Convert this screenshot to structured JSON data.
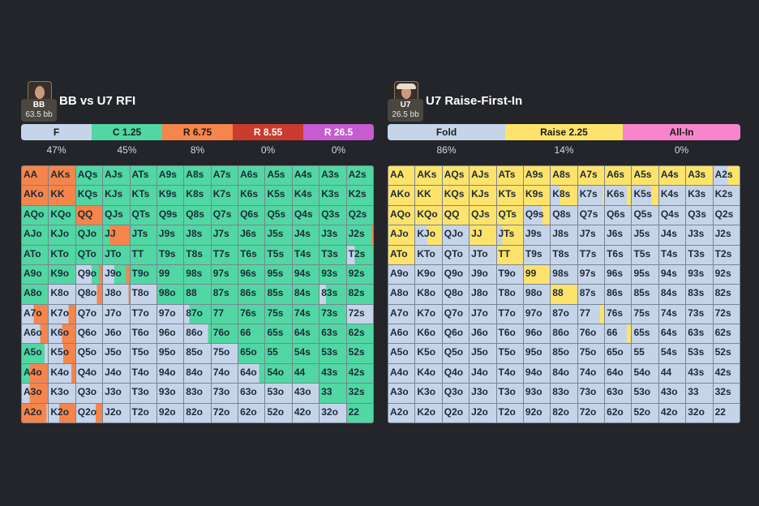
{
  "colors": {
    "f": "#c6d4e9",
    "c": "#50d7a3",
    "r": "#f5854a",
    "y": "#fde36b"
  },
  "hands": [
    [
      "AA",
      "AKs",
      "AQs",
      "AJs",
      "ATs",
      "A9s",
      "A8s",
      "A7s",
      "A6s",
      "A5s",
      "A4s",
      "A3s",
      "A2s"
    ],
    [
      "AKo",
      "KK",
      "KQs",
      "KJs",
      "KTs",
      "K9s",
      "K8s",
      "K7s",
      "K6s",
      "K5s",
      "K4s",
      "K3s",
      "K2s"
    ],
    [
      "AQo",
      "KQo",
      "QQ",
      "QJs",
      "QTs",
      "Q9s",
      "Q8s",
      "Q7s",
      "Q6s",
      "Q5s",
      "Q4s",
      "Q3s",
      "Q2s"
    ],
    [
      "AJo",
      "KJo",
      "QJo",
      "JJ",
      "JTs",
      "J9s",
      "J8s",
      "J7s",
      "J6s",
      "J5s",
      "J4s",
      "J3s",
      "J2s"
    ],
    [
      "ATo",
      "KTo",
      "QTo",
      "JTo",
      "TT",
      "T9s",
      "T8s",
      "T7s",
      "T6s",
      "T5s",
      "T4s",
      "T3s",
      "T2s"
    ],
    [
      "A9o",
      "K9o",
      "Q9o",
      "J9o",
      "T9o",
      "99",
      "98s",
      "97s",
      "96s",
      "95s",
      "94s",
      "93s",
      "92s"
    ],
    [
      "A8o",
      "K8o",
      "Q8o",
      "J8o",
      "T8o",
      "98o",
      "88",
      "87s",
      "86s",
      "85s",
      "84s",
      "83s",
      "82s"
    ],
    [
      "A7o",
      "K7o",
      "Q7o",
      "J7o",
      "T7o",
      "97o",
      "87o",
      "77",
      "76s",
      "75s",
      "74s",
      "73s",
      "72s"
    ],
    [
      "A6o",
      "K6o",
      "Q6o",
      "J6o",
      "T6o",
      "96o",
      "86o",
      "76o",
      "66",
      "65s",
      "64s",
      "63s",
      "62s"
    ],
    [
      "A5o",
      "K5o",
      "Q5o",
      "J5o",
      "T5o",
      "95o",
      "85o",
      "75o",
      "65o",
      "55",
      "54s",
      "53s",
      "52s"
    ],
    [
      "A4o",
      "K4o",
      "Q4o",
      "J4o",
      "T4o",
      "94o",
      "84o",
      "74o",
      "64o",
      "54o",
      "44",
      "43s",
      "42s"
    ],
    [
      "A3o",
      "K3o",
      "Q3o",
      "J3o",
      "T3o",
      "93o",
      "83o",
      "73o",
      "63o",
      "53o",
      "43o",
      "33",
      "32s"
    ],
    [
      "A2o",
      "K2o",
      "Q2o",
      "J2o",
      "T2o",
      "92o",
      "82o",
      "72o",
      "62o",
      "52o",
      "42o",
      "32o",
      "22"
    ]
  ],
  "left": {
    "player": {
      "position": "BB",
      "stack": "63.5 bb",
      "avatar": "bald-man-photo"
    },
    "title": "BB vs U7 RFI",
    "actions": [
      {
        "label": "F",
        "pct": "47%",
        "color": "#c6d4e9",
        "text": "#1b1b1b"
      },
      {
        "label": "C 1.25",
        "pct": "45%",
        "color": "#50d7a3",
        "text": "#1b1b1b"
      },
      {
        "label": "R 6.75",
        "pct": "8%",
        "color": "#f5854a",
        "text": "#1b1b1b"
      },
      {
        "label": "R 8.55",
        "pct": "0%",
        "color": "#cc3b2f",
        "text": "#ffffff"
      },
      {
        "label": "R 26.5",
        "pct": "0%",
        "color": "#c65bd2",
        "text": "#ffffff"
      }
    ],
    "fills": [
      [
        "r",
        "r",
        "c",
        "c",
        "c",
        "c",
        "c",
        "c",
        "c",
        "c",
        "c",
        "c",
        "c"
      ],
      [
        "r",
        "r",
        "c",
        "c",
        "c",
        "c",
        "c",
        "c",
        "c",
        "c",
        "c",
        "c",
        "c"
      ],
      [
        "c",
        "c",
        "r",
        "c",
        "c",
        "c",
        "c",
        "c",
        "c",
        "c",
        "c",
        "c",
        "c"
      ],
      [
        "c",
        "c",
        "c",
        "c25r75",
        "c",
        "c",
        "c",
        "c",
        "c",
        "c",
        "c",
        "c",
        "c95r5"
      ],
      [
        "c",
        "c",
        "c",
        "c",
        "c",
        "c",
        "c",
        "c",
        "c",
        "c",
        "c",
        "c",
        "f30c70"
      ],
      [
        "c",
        "c",
        "f60c28r12",
        "f42c45r13",
        "c",
        "c",
        "c",
        "c",
        "c",
        "c",
        "c",
        "c",
        "c"
      ],
      [
        "c",
        "f",
        "f80r20",
        "f95r5",
        "f",
        "c",
        "c",
        "c",
        "c",
        "c",
        "c",
        "f25c75",
        "c"
      ],
      [
        "f45r55",
        "f75r25",
        "f",
        "f",
        "f",
        "f",
        "f20c80",
        "c",
        "c",
        "c",
        "c",
        "c",
        "f"
      ],
      [
        "f70r30",
        "f50r50",
        "f",
        "f",
        "f",
        "f",
        "f90c10",
        "c",
        "c",
        "c",
        "c",
        "c",
        "c"
      ],
      [
        "c88f12",
        "f55r45",
        "f",
        "f",
        "f",
        "f",
        "f",
        "f",
        "c",
        "c",
        "c",
        "c",
        "c"
      ],
      [
        "c30r70",
        "f85r15",
        "f",
        "f",
        "f",
        "f",
        "f",
        "f",
        "f80c20",
        "c",
        "c",
        "c",
        "c"
      ],
      [
        "f30r70",
        "f",
        "f",
        "f",
        "f",
        "f",
        "f",
        "f",
        "f",
        "f",
        "f",
        "c",
        "c"
      ],
      [
        "r95f5",
        "f40r60",
        "f75r25",
        "f",
        "f",
        "f",
        "f",
        "f",
        "f",
        "f",
        "f",
        "f",
        "c"
      ]
    ]
  },
  "right": {
    "player": {
      "position": "U7",
      "stack": "26.5 bb",
      "avatar": "cowboy-hat-man-photo"
    },
    "title": "U7 Raise-First-In",
    "actions": [
      {
        "label": "Fold",
        "pct": "86%",
        "color": "#c6d4e9",
        "text": "#1b1b1b"
      },
      {
        "label": "Raise 2.25",
        "pct": "14%",
        "color": "#fde36b",
        "text": "#1b1b1b"
      },
      {
        "label": "All-In",
        "pct": "0%",
        "color": "#f884cd",
        "text": "#1b1b1b"
      }
    ],
    "fills": [
      [
        "y",
        "y",
        "y",
        "y",
        "y",
        "y",
        "y",
        "y",
        "y",
        "y",
        "y",
        "y",
        "f55y45"
      ],
      [
        "y",
        "y",
        "y",
        "y",
        "y",
        "y",
        "f35y65",
        "f95y5",
        "f85y15",
        "f75y25",
        "f",
        "f",
        "f"
      ],
      [
        "y",
        "y",
        "y",
        "y",
        "y",
        "f70y30",
        "f",
        "f",
        "f",
        "f",
        "f",
        "f",
        "f"
      ],
      [
        "y",
        "f45y55",
        "f",
        "y",
        "f20y80",
        "f",
        "f",
        "f",
        "f",
        "f",
        "f",
        "f",
        "f"
      ],
      [
        "y",
        "f",
        "f",
        "f",
        "y",
        "f",
        "f",
        "f",
        "f",
        "f",
        "f",
        "f",
        "f"
      ],
      [
        "f",
        "f",
        "f",
        "f",
        "f",
        "y",
        "f",
        "f",
        "f",
        "f",
        "f",
        "f",
        "f"
      ],
      [
        "f",
        "f",
        "f",
        "f",
        "f",
        "f",
        "y",
        "f",
        "f",
        "f",
        "f",
        "f",
        "f"
      ],
      [
        "f",
        "f",
        "f",
        "f",
        "f",
        "f",
        "f",
        "f85y15",
        "f",
        "f",
        "f",
        "f",
        "f"
      ],
      [
        "f",
        "f",
        "f",
        "f",
        "f",
        "f",
        "f",
        "f",
        "f85y15",
        "f",
        "f",
        "f",
        "f"
      ],
      [
        "f",
        "f",
        "f",
        "f",
        "f",
        "f",
        "f",
        "f",
        "f",
        "f",
        "f",
        "f",
        "f"
      ],
      [
        "f",
        "f",
        "f",
        "f",
        "f",
        "f",
        "f",
        "f",
        "f",
        "f",
        "f",
        "f",
        "f"
      ],
      [
        "f",
        "f",
        "f",
        "f",
        "f",
        "f",
        "f",
        "f",
        "f",
        "f",
        "f",
        "f",
        "f"
      ],
      [
        "f",
        "f",
        "f",
        "f",
        "f",
        "f",
        "f",
        "f",
        "f",
        "f",
        "f",
        "f",
        "f"
      ]
    ]
  }
}
